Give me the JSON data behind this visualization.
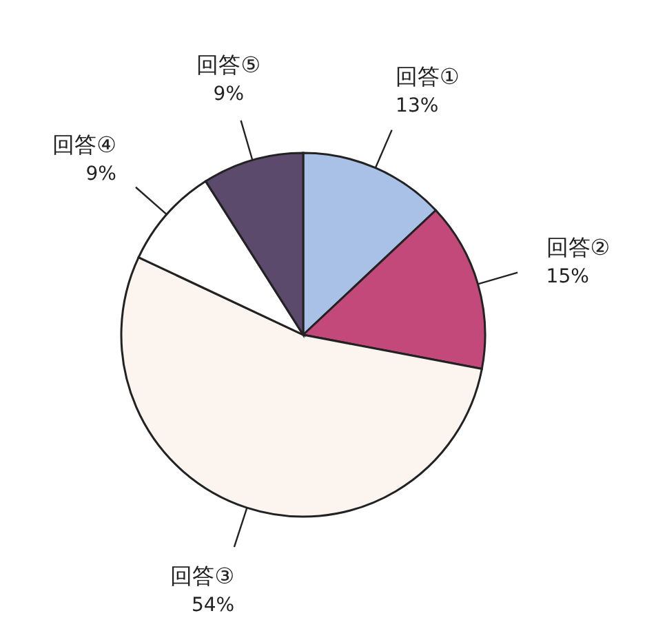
{
  "chart_data": {
    "type": "pie",
    "categories": [
      "回答①",
      "回答②",
      "回答③",
      "回答④",
      "回答⑤"
    ],
    "values": [
      13,
      15,
      54,
      9,
      9
    ],
    "value_labels": [
      "13%",
      "15%",
      "54%",
      "9%",
      "9%"
    ],
    "colors": [
      "#a9c1e6",
      "#c2497a",
      "#fbf4ef",
      "#ffffff",
      "#5b4a6b"
    ]
  }
}
